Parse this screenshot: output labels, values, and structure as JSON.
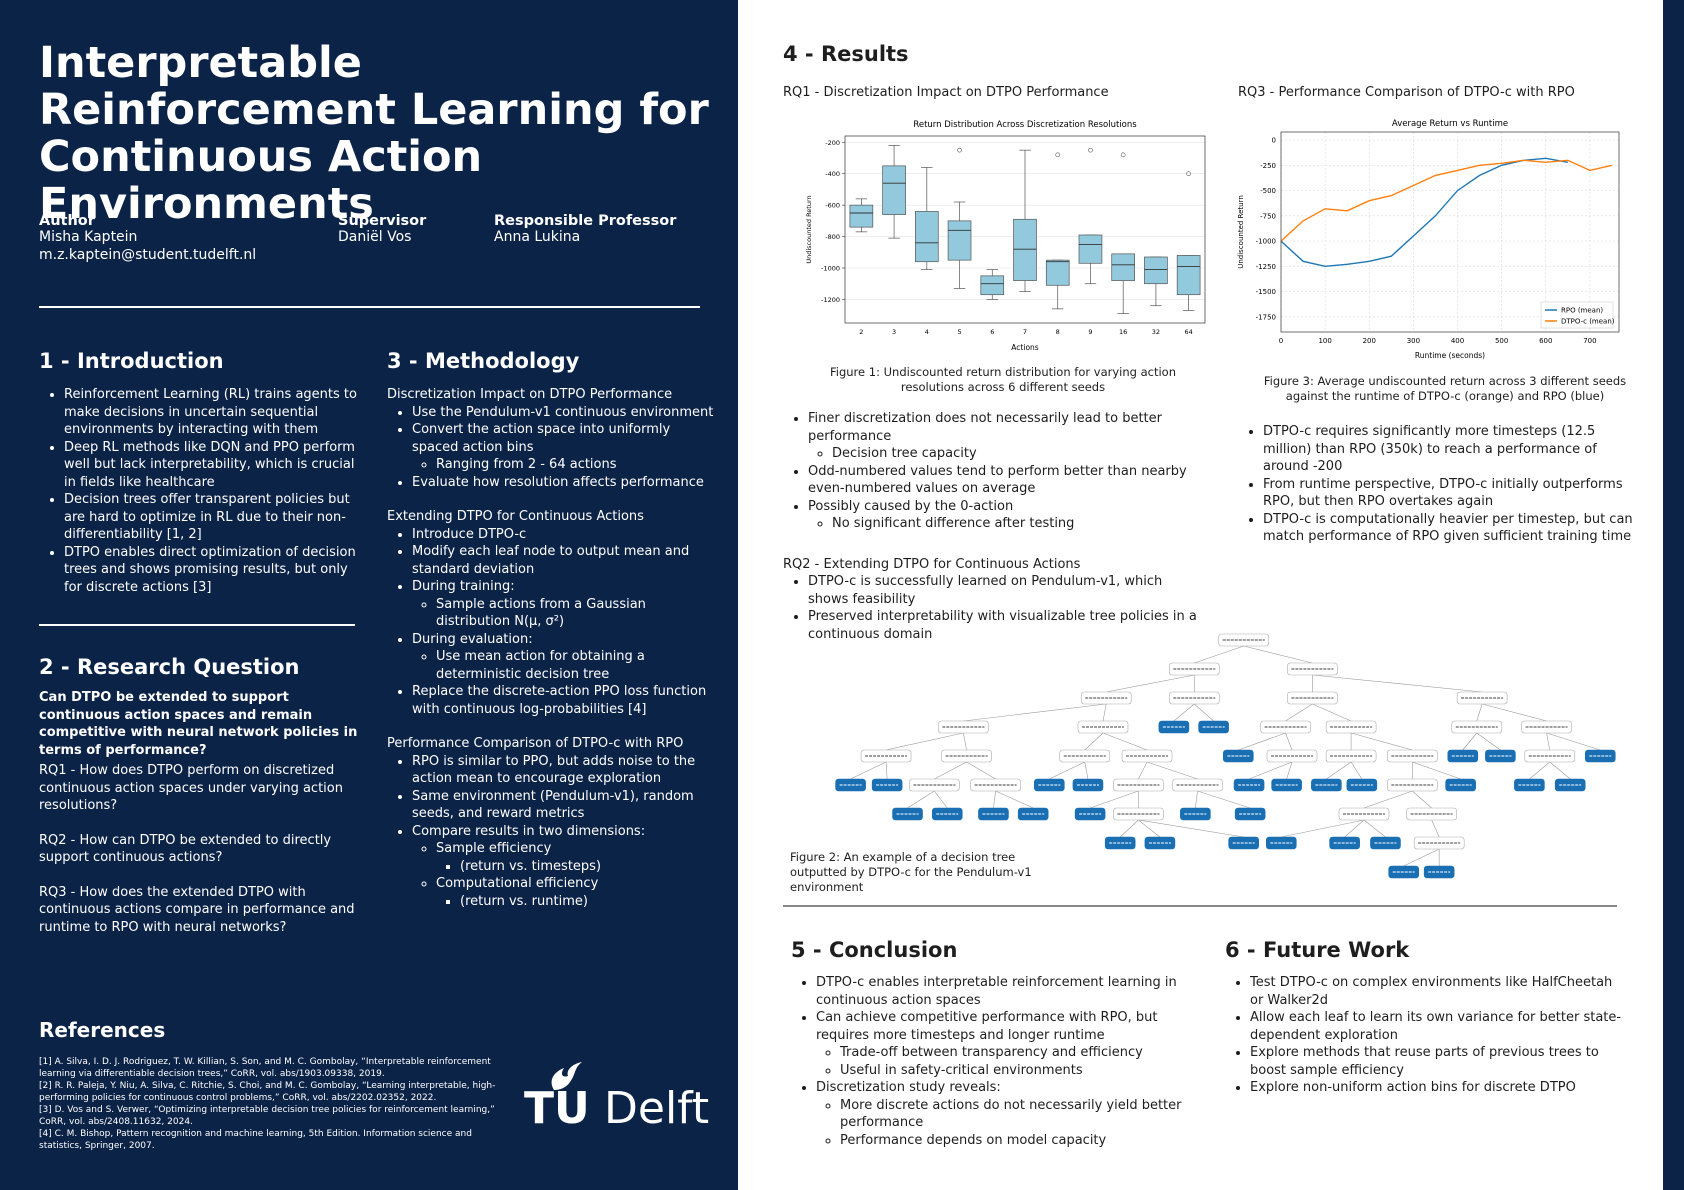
{
  "header": {
    "title": "Interpretable Reinforcement Learning for Continuous Action Environments",
    "people": [
      {
        "role": "Author",
        "lines": [
          "Misha Kaptein",
          "m.z.kaptein@student.tudelft.nl"
        ]
      },
      {
        "role": "Supervisor",
        "lines": [
          "Daniël Vos"
        ]
      },
      {
        "role": "Responsible Professor",
        "lines": [
          "Anna Lukina"
        ]
      }
    ]
  },
  "introduction": {
    "heading": "1 - Introduction",
    "items": [
      "Reinforcement Learning (RL) trains agents to make decisions in uncertain sequential environments by interacting with them",
      "Deep RL methods like DQN and PPO perform well but lack interpretability, which is crucial in fields like healthcare",
      "Decision trees offer transparent policies but are hard to optimize in RL due to their non-differentiability [1, 2]",
      "DTPO enables direct optimization of decision trees and shows promising results, but only for discrete actions [3]"
    ]
  },
  "research_question": {
    "heading": "2 - Research Question",
    "main": "Can DTPO be extended to support continuous action spaces and remain competitive with neural network policies in terms of performance?",
    "questions": [
      "RQ1 - How does DTPO perform on discretized continuous action spaces under varying action resolutions?",
      "RQ2 - How can DTPO be extended to directly support continuous actions?",
      "RQ3 - How does the extended DTPO with continuous actions compare in performance and runtime to RPO with neural networks?"
    ]
  },
  "methodology": {
    "heading": "3 - Methodology",
    "groups": [
      {
        "title": "Discretization Impact on DTPO Performance",
        "items": [
          "Use the Pendulum-v1 continuous environment",
          {
            "text": "Convert the action space into uniformly spaced action bins",
            "sub": [
              "Ranging from 2 - 64 actions"
            ]
          },
          "Evaluate how resolution affects performance"
        ]
      },
      {
        "title": "Extending DTPO for Continuous Actions",
        "items": [
          "Introduce DTPO-c",
          "Modify each leaf node to output mean and standard deviation",
          {
            "text": "During training:",
            "sub": [
              "Sample actions from a Gaussian distribution N(μ, σ²)"
            ]
          },
          {
            "text": "During evaluation:",
            "sub": [
              "Use mean action for obtaining a deterministic decision tree"
            ]
          },
          "Replace the discrete-action PPO loss function with continuous log-probabilities [4]"
        ]
      },
      {
        "title": "Performance Comparison of DTPO-c with RPO",
        "items": [
          "RPO is similar to PPO, but adds noise to the action mean to encourage exploration",
          "Same environment (Pendulum-v1), random seeds, and reward metrics",
          {
            "text": "Compare results in two dimensions:",
            "sub": [
              {
                "text": "Sample efficiency",
                "sub": [
                  "(return vs. timesteps)"
                ]
              },
              {
                "text": "Computational efficiency",
                "sub": [
                  "(return vs. runtime)"
                ]
              }
            ]
          }
        ]
      }
    ]
  },
  "references": {
    "heading": "References",
    "items": [
      "[1] A. Silva, I. D. J. Rodriguez, T. W. Killian, S. Son, and M. C. Gombolay, “Interpretable reinforcement learning via differentiable decision trees,” CoRR, vol. abs/1903.09338, 2019.",
      "[2] R. R. Paleja, Y. Niu, A. Silva, C. Ritchie, S. Choi, and M. C. Gombolay, “Learning interpretable, high-performing policies for continuous control problems,” CoRR, vol. abs/2202.02352, 2022.",
      "[3] D. Vos and S. Verwer, “Optimizing interpretable decision tree policies for reinforcement learning,” CoRR, vol. abs/2408.11632, 2024.",
      "[4] C. M. Bishop, Pattern recognition and machine learning, 5th Edition. Information science and statistics, Springer, 2007."
    ]
  },
  "logo": {
    "tu": "TU",
    "delft": "Delft"
  },
  "results": {
    "heading": "4 - Results",
    "rq1": {
      "title": "RQ1 - Discretization Impact on DTPO Performance",
      "chart": {
        "type": "box",
        "title": "Return Distribution Across Discretization Resolutions",
        "x_label": "Actions",
        "y_label": "Undiscounted Return",
        "color": "#92c9dd",
        "grid": true,
        "categories": [
          "2",
          "3",
          "4",
          "5",
          "6",
          "7",
          "8",
          "9",
          "16",
          "32",
          "64"
        ],
        "ylim": [
          -1350,
          -160
        ],
        "yticks": [
          -200,
          -400,
          -600,
          -800,
          -1000,
          -1200
        ],
        "boxes": [
          {
            "whisker_low": -770,
            "q1": -740,
            "median": -650,
            "q3": -600,
            "whisker_high": -560
          },
          {
            "whisker_low": -810,
            "q1": -660,
            "median": -460,
            "q3": -350,
            "whisker_high": -220
          },
          {
            "whisker_low": -1010,
            "q1": -960,
            "median": -840,
            "q3": -640,
            "whisker_high": -360
          },
          {
            "whisker_low": -1130,
            "q1": -950,
            "median": -760,
            "q3": -700,
            "whisker_high": -580,
            "outliers": [
              -250
            ]
          },
          {
            "whisker_low": -1200,
            "q1": -1170,
            "median": -1100,
            "q3": -1050,
            "whisker_high": -1010
          },
          {
            "whisker_low": -1150,
            "q1": -1080,
            "median": -880,
            "q3": -690,
            "whisker_high": -250
          },
          {
            "whisker_low": -1260,
            "q1": -1110,
            "median": -960,
            "q3": -950,
            "whisker_high": -950,
            "outliers": [
              -280
            ]
          },
          {
            "whisker_low": -1100,
            "q1": -970,
            "median": -850,
            "q3": -790,
            "whisker_high": -790,
            "outliers": [
              -250
            ]
          },
          {
            "whisker_low": -1290,
            "q1": -1080,
            "median": -980,
            "q3": -910,
            "whisker_high": -910,
            "outliers": [
              -280
            ]
          },
          {
            "whisker_low": -1240,
            "q1": -1100,
            "median": -1010,
            "q3": -930,
            "whisker_high": -930
          },
          {
            "whisker_low": -1270,
            "q1": -1170,
            "median": -990,
            "q3": -920,
            "whisker_high": -920,
            "outliers": [
              -400
            ]
          }
        ]
      },
      "caption": "Figure 1: Undiscounted return distribution for varying action resolutions across 6 different seeds",
      "items": [
        {
          "text": "Finer discretization does not necessarily lead to better performance",
          "sub": [
            "Decision tree capacity"
          ]
        },
        "Odd-numbered values tend to perform better than nearby even-numbered values on average",
        {
          "text": "Possibly caused by the 0-action",
          "sub": [
            "No significant difference after testing"
          ]
        }
      ]
    },
    "rq2": {
      "title": "RQ2 - Extending DTPO for Continuous Actions",
      "items": [
        "DTPO-c is successfully learned on Pendulum-v1, which shows feasibility",
        "Preserved interpretability with visualizable tree policies in a continuous domain"
      ],
      "caption": "Figure 2: An example of a decision tree outputted by DTPO-c for the Pendulum-v1 environment"
    },
    "rq3": {
      "title": "RQ3 - Performance Comparison of DTPO-c with RPO",
      "chart": {
        "type": "line",
        "title": "Average Return vs Runtime",
        "x_label": "Runtime (seconds)",
        "y_label": "Undiscounted Return",
        "grid": true,
        "legend": "lower right",
        "x": [
          0,
          50,
          100,
          150,
          200,
          250,
          300,
          350,
          400,
          450,
          500,
          550,
          600,
          650,
          700,
          750
        ],
        "xlim": [
          0,
          766
        ],
        "xticks": [
          0,
          100,
          200,
          300,
          400,
          500,
          600,
          700
        ],
        "ylim": [
          -1900,
          80
        ],
        "yticks": [
          0,
          -250,
          -500,
          -750,
          -1000,
          -1250,
          -1500,
          -1750
        ],
        "series": [
          {
            "name": "RPO (mean)",
            "color": "#1f77b4",
            "values": [
              -1000,
              -1200,
              -1250,
              -1230,
              -1200,
              -1150,
              -950,
              -750,
              -500,
              -350,
              -250,
              -200,
              -180,
              -220,
              null,
              null
            ]
          },
          {
            "name": "DTPO-c (mean)",
            "color": "#ff7f0e",
            "values": [
              -1000,
              -800,
              -680,
              -700,
              -600,
              -550,
              -450,
              -350,
              -300,
              -250,
              -230,
              -200,
              -220,
              -200,
              -300,
              -250
            ]
          }
        ]
      },
      "caption": "Figure 3: Average undiscounted return across 3 different seeds against the runtime of DTPO-c (orange) and RPO (blue)",
      "items": [
        "DTPO-c requires significantly more timesteps (12.5 million) than RPO (350k) to reach a performance of around -200",
        "From runtime perspective, DTPO-c initially outperforms RPO, but then RPO overtakes again",
        "DTPO-c is computationally heavier per timestep, but can match performance of RPO given sufficient training time"
      ]
    }
  },
  "conclusion": {
    "heading": "5 - Conclusion",
    "items": [
      "DTPO-c enables interpretable reinforcement learning in continuous action spaces",
      {
        "text": "Can achieve competitive performance with RPO, but requires more timesteps and longer runtime",
        "sub": [
          "Trade-off between transparency and efficiency",
          "Useful in safety-critical environments"
        ]
      },
      {
        "text": "Discretization study reveals:",
        "sub": [
          "More discrete actions do not necessarily yield better performance",
          "Performance depends on model capacity"
        ]
      }
    ]
  },
  "future_work": {
    "heading": "6 - Future Work",
    "items": [
      "Test DTPO-c on complex environments like HalfCheetah or Walker2d",
      "Allow each leaf to learn its own variance for better state-dependent exploration",
      "Explore methods that reuse parts of previous trees to boost sample efficiency",
      "Explore non-uniform action bins for discrete DTPO"
    ]
  }
}
